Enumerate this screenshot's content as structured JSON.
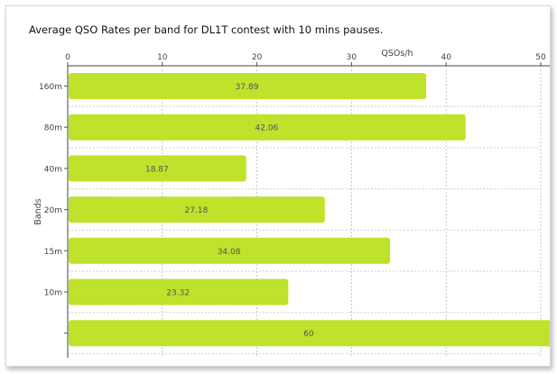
{
  "chart_data": {
    "type": "bar",
    "orientation": "horizontal",
    "title": "Average QSO Rates per band for DL1T contest with 10 mins pauses.",
    "xlabel": "QSOs/h",
    "ylabel": "Bands",
    "xlim": [
      0,
      50
    ],
    "xticks": [
      0,
      10,
      20,
      30,
      40,
      50
    ],
    "categories": [
      "160m",
      "80m",
      "40m",
      "20m",
      "15m",
      "10m",
      ""
    ],
    "values": [
      37.89,
      42.06,
      18.87,
      27.18,
      34.08,
      23.32,
      60
    ],
    "value_labels": [
      "37.89",
      "42.06",
      "18.87",
      "27.18",
      "34.08",
      "23.32",
      "60"
    ],
    "bar_color": "#bfe22b",
    "grid": true,
    "legend": "none"
  }
}
